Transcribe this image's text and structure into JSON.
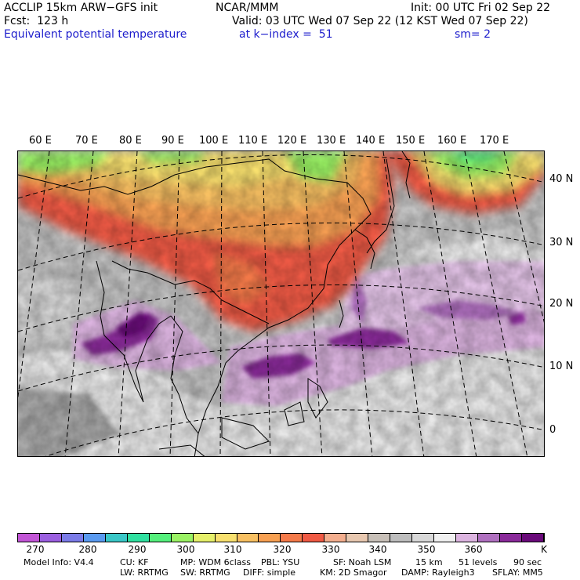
{
  "header": {
    "model": "ACCLIP 15km ARW−GFS init",
    "org": "NCAR/MMM",
    "init": "Init: 00 UTC Fri 02 Sep 22",
    "fcst": "Fcst:  123 h",
    "valid": "Valid: 03 UTC Wed 07 Sep 22 (12 KST Wed 07 Sep 22)",
    "field": "Equivalent potential temperature",
    "level": "at k−index =  51",
    "smooth": "sm= 2"
  },
  "lon_labels": [
    "60 E",
    "70 E",
    "80 E",
    "90 E",
    "100 E",
    "110 E",
    "120 E",
    "130 E",
    "140 E",
    "150 E",
    "160 E",
    "170 E"
  ],
  "lat_labels": [
    "40 N",
    "30 N",
    "20 N",
    "10 N",
    "0"
  ],
  "colorbar": {
    "unit": "K",
    "ticks": [
      "270",
      "280",
      "290",
      "300",
      "310",
      "320",
      "330",
      "340",
      "350",
      "360"
    ],
    "colors": [
      "#c255d6",
      "#9b5fe0",
      "#7b7be8",
      "#5a9af0",
      "#3ac7c7",
      "#30e0a0",
      "#55f07c",
      "#9af264",
      "#e6f06a",
      "#f8e06e",
      "#f8c062",
      "#f8a052",
      "#f57a4a",
      "#f05a44",
      "#f4ae8e",
      "#e8c8b0",
      "#c8c0b8",
      "#bdbdbd",
      "#d8d8d8",
      "#f0f0f0",
      "#dcb4e0",
      "#b070c0",
      "#8a2a9a",
      "#6a0a7a"
    ]
  },
  "footer": {
    "line1": [
      "Model Info: V4.4",
      "CU: KF",
      "MP: WDM 6class",
      "PBL: YSU",
      "SF: Noah LSM",
      "15 km",
      "51 levels",
      "90 sec"
    ],
    "line2": [
      "LW: RRTMG",
      "SW: RRTMG",
      "DIFF: simple",
      "KM: 2D Smagor",
      "DAMP: Rayleigh3",
      "SFLAY: MM5"
    ]
  }
}
